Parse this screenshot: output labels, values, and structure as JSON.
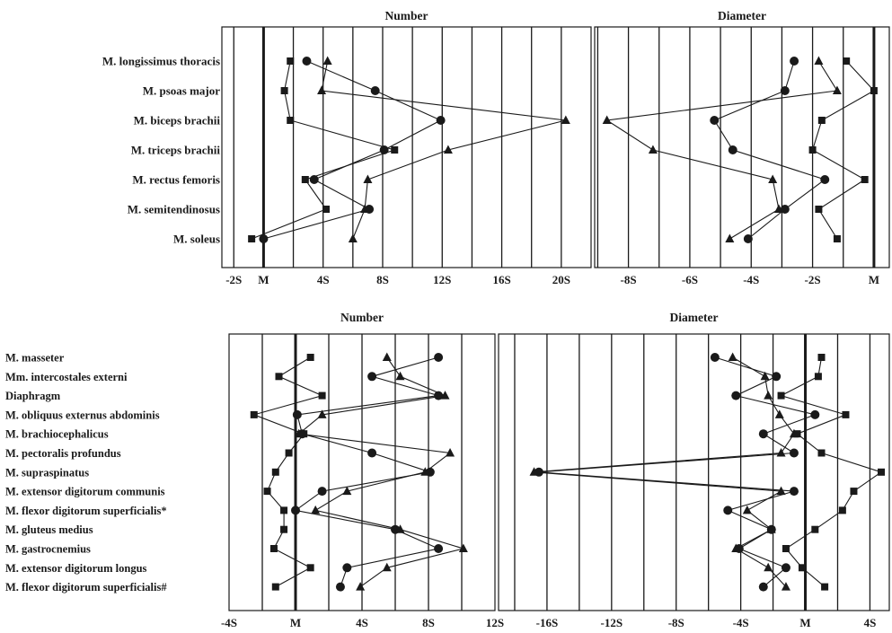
{
  "colors": {
    "ink": "#1a1a1a",
    "background": "#ffffff"
  },
  "chart_data": [
    {
      "type": "scatter",
      "title": "Number",
      "categories": [
        "M. longissimus thoracis",
        "M. psoas major",
        "M. biceps brachii",
        "M. triceps brachii",
        "M. rectus femoris",
        "M. semitendinosus",
        "M. soleus"
      ],
      "x_ticks": [
        -2,
        0,
        4,
        8,
        12,
        16,
        20
      ],
      "x_tick_labels": [
        "-2S",
        "M",
        "4S",
        "8S",
        "12S",
        "16S",
        "20S"
      ],
      "xlim": [
        -2.8,
        22
      ],
      "grid_step": 2,
      "reference_line": 0,
      "series": [
        {
          "marker": "square",
          "values": [
            1.8,
            1.4,
            1.8,
            8.8,
            2.8,
            4.2,
            -0.8
          ]
        },
        {
          "marker": "circle",
          "values": [
            2.9,
            7.5,
            11.9,
            8.1,
            3.4,
            7.1,
            0
          ]
        },
        {
          "marker": "triangle",
          "values": [
            4.3,
            3.9,
            20.3,
            12.4,
            7.0,
            6.8,
            6.0
          ]
        }
      ]
    },
    {
      "type": "scatter",
      "title": "Diameter",
      "categories": [
        "M. longissimus thoracis",
        "M. psoas major",
        "M. biceps brachii",
        "M. triceps brachii",
        "M. rectus femoris",
        "M. semitendinosus",
        "M. soleus"
      ],
      "x_ticks": [
        -8,
        -6,
        -4,
        -2,
        0
      ],
      "x_tick_labels": [
        "-8S",
        "-6S",
        "-4S",
        "-2S",
        "M"
      ],
      "xlim": [
        -9.1,
        0.5
      ],
      "grid_step": 1,
      "reference_line": 0,
      "series": [
        {
          "marker": "square",
          "values": [
            -0.9,
            0,
            -1.7,
            -2.0,
            -0.3,
            -1.8,
            -1.2
          ]
        },
        {
          "marker": "circle",
          "values": [
            -2.6,
            -2.9,
            -5.2,
            -4.6,
            -1.6,
            -2.9,
            -4.1
          ]
        },
        {
          "marker": "triangle",
          "values": [
            -1.8,
            -1.2,
            -8.7,
            -7.2,
            -3.3,
            -3.1,
            -4.7
          ]
        }
      ]
    },
    {
      "type": "scatter",
      "title": "Number",
      "categories": [
        "M. masseter",
        "Mm. intercostales externi",
        "Diaphragm",
        "M. obliquus externus abdominis",
        "M. brachiocephalicus",
        "M. pectoralis profundus",
        "M. supraspinatus",
        "M. extensor digitorum communis",
        "M. flexor digitorum superficialis*",
        "M. gluteus medius",
        "M. gastrocnemius",
        "M. extensor digitorum longus",
        "M. flexor digitorum superficialis#"
      ],
      "x_ticks": [
        -4,
        0,
        4,
        8,
        12
      ],
      "x_tick_labels": [
        "-4S",
        "M",
        "4S",
        "8S",
        "12S"
      ],
      "xlim": [
        -4,
        12
      ],
      "grid_step": 2,
      "reference_line": 0,
      "series": [
        {
          "marker": "square",
          "values": [
            0.9,
            -1.0,
            1.6,
            -2.5,
            0.5,
            -0.4,
            -1.2,
            -1.7,
            -0.7,
            -0.7,
            -1.3,
            0.9,
            -1.2
          ]
        },
        {
          "marker": "circle",
          "values": [
            8.6,
            4.6,
            8.6,
            0.1,
            0.4,
            4.6,
            8.1,
            1.6,
            0,
            6.0,
            8.6,
            3.1,
            2.7
          ]
        },
        {
          "marker": "triangle",
          "values": [
            5.5,
            6.3,
            9.0,
            1.6,
            0.2,
            9.3,
            7.8,
            3.1,
            1.2,
            6.3,
            10.1,
            5.5,
            3.9
          ]
        }
      ]
    },
    {
      "type": "scatter",
      "title": "Diameter",
      "categories": [
        "M. masseter",
        "Mm. intercostales externi",
        "Diaphragm",
        "M. obliquus externus abdominis",
        "M. brachiocephalicus",
        "M. pectoralis profundus",
        "M. supraspinatus",
        "M. extensor digitorum communis",
        "M. flexor digitorum superficialis*",
        "M. gluteus medius",
        "M. gastrocnemius",
        "M. extensor digitorum longus",
        "M. flexor digitorum superficialis#"
      ],
      "x_ticks": [
        -16,
        -12,
        -8,
        -4,
        0,
        4
      ],
      "x_tick_labels": [
        "-16S",
        "-12S",
        "-8S",
        "-4S",
        "M",
        "4S"
      ],
      "xlim": [
        -19,
        5.2
      ],
      "grid_step": 2,
      "reference_line": 0,
      "series": [
        {
          "marker": "square",
          "values": [
            1.0,
            0.8,
            -1.5,
            2.5,
            -0.5,
            1.0,
            4.7,
            3.0,
            2.3,
            0.6,
            -1.2,
            -0.2,
            1.2
          ]
        },
        {
          "marker": "circle",
          "values": [
            -5.6,
            -1.8,
            -4.3,
            0.6,
            -2.6,
            -0.7,
            -16.5,
            -0.7,
            -4.8,
            -2.1,
            -4.1,
            -1.2,
            -2.6
          ]
        },
        {
          "marker": "triangle",
          "values": [
            -4.5,
            -2.5,
            -2.3,
            -1.6,
            -0.7,
            -1.5,
            -16.8,
            -1.5,
            -3.6,
            -2.1,
            -4.3,
            -2.3,
            -1.2
          ]
        }
      ]
    }
  ]
}
